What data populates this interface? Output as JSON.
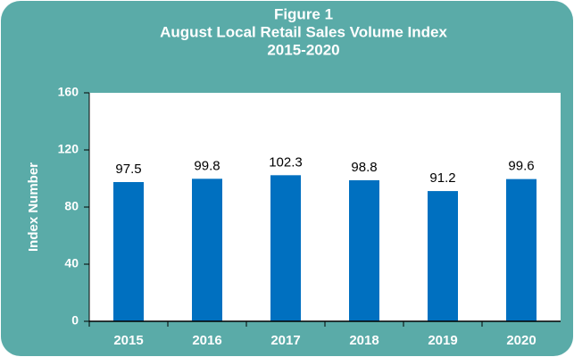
{
  "chart_data": {
    "type": "bar",
    "title": [
      "Figure 1",
      "August Local Retail Sales Volume Index",
      "2015-2020"
    ],
    "y_label": "Index Number",
    "categories": [
      "2015",
      "2016",
      "2017",
      "2018",
      "2019",
      "2020"
    ],
    "values": [
      97.5,
      99.8,
      102.3,
      98.8,
      91.2,
      99.6
    ],
    "color": "#0070c0",
    "ylim": [
      0,
      160
    ],
    "yticks": [
      0,
      40,
      80,
      120,
      160
    ],
    "grid": false
  }
}
